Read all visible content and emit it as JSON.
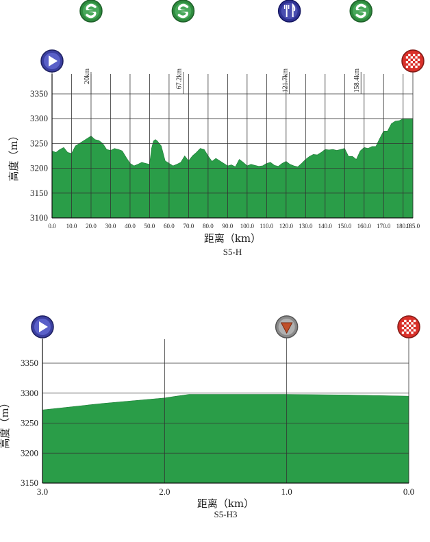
{
  "chart_data": [
    {
      "type": "area",
      "xlabel": "距离（km）",
      "ylabel": "高度（m）",
      "subtitle": "S5-H",
      "xlim": [
        0,
        185
      ],
      "ylim": [
        3100,
        3350
      ],
      "x_ticks": [
        "0.0",
        "10.0",
        "20.0",
        "30.0",
        "40.0",
        "50.0",
        "60.0",
        "70.0",
        "80.0",
        "90.0",
        "100.0",
        "110.0",
        "120.0",
        "130.0",
        "140.0",
        "150.0",
        "160.0",
        "170.0",
        "180.0",
        "185.0"
      ],
      "y_ticks": [
        "3100",
        "3150",
        "3200",
        "3250",
        "3300",
        "3350"
      ],
      "grid": true,
      "fill_color": "#2a9d48",
      "x": [
        0,
        2,
        4,
        6,
        8,
        10,
        12,
        14,
        16,
        18,
        20,
        22,
        24,
        26,
        28,
        30,
        32,
        34,
        36,
        38,
        40,
        42,
        44,
        46,
        48,
        50,
        51,
        52,
        53,
        54,
        56,
        58,
        60,
        62,
        64,
        66,
        68,
        70,
        72,
        74,
        76,
        78,
        80,
        82,
        84,
        86,
        88,
        90,
        92,
        94,
        96,
        98,
        100,
        102,
        104,
        106,
        108,
        110,
        112,
        114,
        116,
        118,
        120,
        122,
        124,
        126,
        128,
        130,
        132,
        134,
        136,
        138,
        140,
        142,
        144,
        146,
        148,
        150,
        152,
        154,
        156,
        158,
        160,
        162,
        164,
        166,
        168,
        170,
        172,
        174,
        176,
        178,
        180,
        182,
        184,
        185
      ],
      "y": [
        3235,
        3232,
        3238,
        3242,
        3232,
        3230,
        3245,
        3250,
        3255,
        3260,
        3265,
        3258,
        3256,
        3250,
        3238,
        3236,
        3240,
        3238,
        3235,
        3222,
        3210,
        3205,
        3208,
        3212,
        3210,
        3208,
        3240,
        3255,
        3258,
        3255,
        3245,
        3215,
        3210,
        3205,
        3208,
        3212,
        3225,
        3215,
        3225,
        3232,
        3240,
        3238,
        3225,
        3214,
        3220,
        3215,
        3210,
        3205,
        3207,
        3203,
        3218,
        3212,
        3205,
        3208,
        3206,
        3204,
        3205,
        3210,
        3212,
        3206,
        3204,
        3210,
        3214,
        3208,
        3205,
        3203,
        3210,
        3218,
        3224,
        3228,
        3227,
        3232,
        3238,
        3237,
        3238,
        3236,
        3238,
        3240,
        3224,
        3224,
        3218,
        3235,
        3242,
        3240,
        3244,
        3244,
        3260,
        3275,
        3275,
        3290,
        3295,
        3296,
        3300,
        3300,
        3300,
        3300
      ],
      "markers": [
        {
          "type": "start",
          "km": 0
        },
        {
          "type": "sprint",
          "km": 20,
          "label": "20km"
        },
        {
          "type": "sprint",
          "km": 67.2,
          "label": "67.2km"
        },
        {
          "type": "feed",
          "km": 121.7,
          "label": "121.7km"
        },
        {
          "type": "sprint",
          "km": 158.4,
          "label": "158.4km"
        },
        {
          "type": "finish",
          "km": 185
        }
      ]
    },
    {
      "type": "area",
      "xlabel": "距离（km）",
      "ylabel": "高度（m）",
      "subtitle": "S5-H3",
      "xlim": [
        3.0,
        0.0
      ],
      "ylim": [
        3150,
        3350
      ],
      "x_ticks": [
        "3.0",
        "2.0",
        "1.0",
        "0.0"
      ],
      "y_ticks": [
        "3150",
        "3200",
        "3250",
        "3300",
        "3350"
      ],
      "grid": true,
      "fill_color": "#2a9d48",
      "x": [
        3.0,
        2.5,
        2.0,
        1.8,
        1.5,
        1.0,
        0.5,
        0.0
      ],
      "y": [
        3272,
        3283,
        3292,
        3298,
        3298,
        3298,
        3297,
        3295
      ],
      "markers": [
        {
          "type": "start",
          "km": 3.0
        },
        {
          "type": "flag",
          "km": 1.0
        },
        {
          "type": "finish",
          "km": 0.0
        }
      ]
    }
  ],
  "colors": {
    "fill": "#2a9d48",
    "sprint_icon": "#2e8b3e",
    "feed_icon": "#2e3192",
    "start_icon": "#3b3fa0",
    "finish_icon": "#d9302a",
    "flag_icon": "#8a8a8a"
  },
  "icons": {
    "start": "play-triangle-icon",
    "sprint": "sprint-s-icon",
    "feed": "fork-knife-icon",
    "finish": "checkered-flag-icon",
    "flag": "red-triangle-icon"
  }
}
